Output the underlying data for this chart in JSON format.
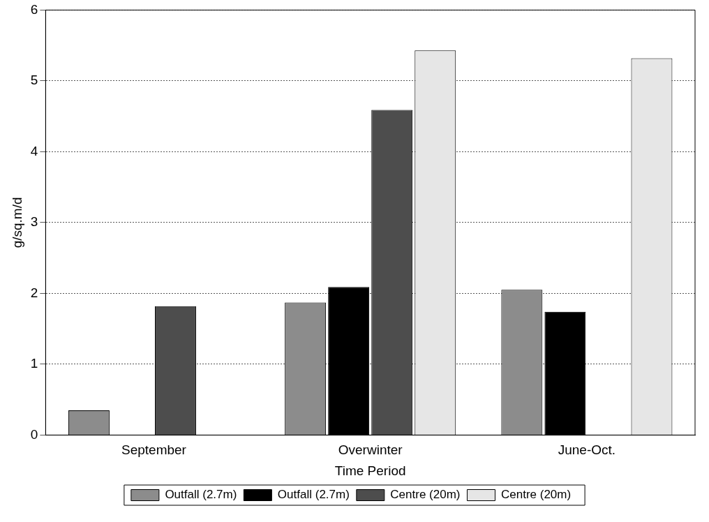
{
  "chart_data": {
    "type": "bar",
    "xlabel": "Time Period",
    "ylabel": "g/sq.m/d",
    "categories": [
      "September",
      "Overwinter",
      "June-Oct."
    ],
    "series": [
      {
        "name": "Outfall (2.7m)",
        "color": "#8c8c8c",
        "values": [
          0.35,
          1.87,
          2.05
        ]
      },
      {
        "name": "Outfall (2.7m)",
        "color": "#000000",
        "values": [
          null,
          2.09,
          1.74
        ]
      },
      {
        "name": "Centre (20m)",
        "color": "#4d4d4d",
        "values": [
          1.82,
          4.59,
          null
        ]
      },
      {
        "name": "Centre (20m)",
        "color": "#e6e6e6",
        "values": [
          null,
          5.43,
          5.32
        ]
      }
    ],
    "ylim": [
      0,
      6
    ],
    "yticks": [
      0,
      1,
      2,
      3,
      4,
      5,
      6
    ],
    "grid": "y",
    "legend": "bottom"
  }
}
